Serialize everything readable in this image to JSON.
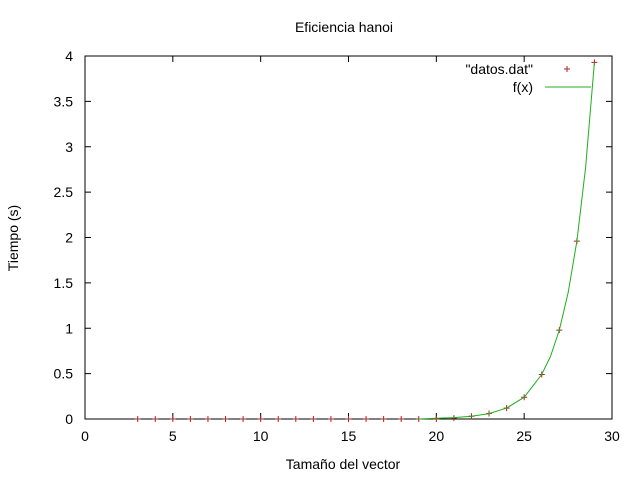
{
  "chart_data": {
    "type": "scatter",
    "title": "Eficiencia hanoi",
    "xlabel": "Tamaño del vector",
    "ylabel": "Tiempo (s)",
    "xlim": [
      0,
      30
    ],
    "ylim": [
      0,
      4
    ],
    "xticks": [
      "0",
      "5",
      "10",
      "15",
      "20",
      "25",
      "30"
    ],
    "yticks": [
      "0",
      "0.5",
      "1",
      "1.5",
      "2",
      "2.5",
      "3",
      "3.5",
      "4"
    ],
    "grid": false,
    "legend_position": "top-right",
    "series": [
      {
        "name": "\"datos.dat\"",
        "kind": "points",
        "marker": "plus",
        "color": "#b22222",
        "x": [
          3,
          4,
          5,
          6,
          7,
          8,
          9,
          10,
          11,
          12,
          13,
          14,
          15,
          16,
          17,
          18,
          19,
          20,
          21,
          22,
          23,
          24,
          25,
          26,
          27,
          28,
          29
        ],
        "y": [
          0,
          0,
          0,
          0,
          0,
          0,
          0,
          0,
          0,
          0,
          0,
          0,
          0,
          0,
          0,
          0,
          0,
          0,
          0.01,
          0.03,
          0.06,
          0.12,
          0.24,
          0.49,
          0.98,
          1.96,
          3.93
        ]
      },
      {
        "name": "f(x)",
        "kind": "line",
        "color": "#1fae1f",
        "x": [
          19,
          20,
          21,
          22,
          23,
          24,
          25,
          26,
          26.5,
          27,
          27.5,
          28,
          28.5,
          29
        ],
        "y": [
          0.0,
          0.0075,
          0.015,
          0.03,
          0.06,
          0.12,
          0.24,
          0.49,
          0.69,
          0.98,
          1.39,
          1.96,
          2.77,
          3.93
        ]
      }
    ]
  }
}
